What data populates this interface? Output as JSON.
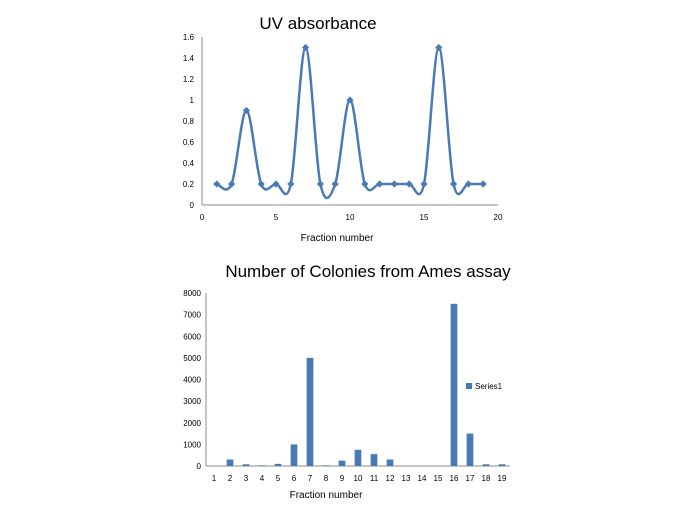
{
  "chart_data": [
    {
      "type": "line",
      "title": "UV absorbance",
      "xlabel": "Fraction number",
      "ylabel": "",
      "xlim": [
        0,
        20
      ],
      "ylim": [
        0,
        1.6
      ],
      "x_ticks": [
        "0",
        "5",
        "10",
        "15",
        "20"
      ],
      "y_ticks": [
        "0",
        "0.2",
        "0.4",
        "0.6",
        "0.8",
        "1",
        "1.2",
        "1.4",
        "1.6"
      ],
      "smooth": true,
      "marker": "diamond",
      "color": "#4a7ab5",
      "grid": false,
      "legend": "none",
      "series": [
        {
          "x": [
            1,
            2,
            3,
            4,
            5,
            6,
            7,
            8,
            9,
            10,
            11,
            12,
            13,
            14,
            15,
            16,
            17,
            18,
            19
          ],
          "values": [
            0.2,
            0.2,
            0.9,
            0.2,
            0.2,
            0.2,
            1.5,
            0.2,
            0.2,
            1.0,
            0.2,
            0.2,
            0.2,
            0.2,
            0.2,
            1.5,
            0.2,
            0.2,
            0.2
          ]
        }
      ]
    },
    {
      "type": "bar",
      "title": "Number of Colonies from Ames assay",
      "xlabel": "Fraction number",
      "ylabel": "",
      "ylim": [
        0,
        8000
      ],
      "y_ticks": [
        "0",
        "1000",
        "2000",
        "3000",
        "4000",
        "5000",
        "6000",
        "7000",
        "8000"
      ],
      "categories": [
        "1",
        "2",
        "3",
        "4",
        "5",
        "6",
        "7",
        "8",
        "9",
        "10",
        "11",
        "12",
        "13",
        "14",
        "15",
        "16",
        "17",
        "18",
        "19"
      ],
      "color": "#4a7ab5",
      "grid": false,
      "legend": "right",
      "series": [
        {
          "name": "Series1",
          "values": [
            0,
            300,
            80,
            30,
            100,
            1000,
            5000,
            30,
            250,
            750,
            550,
            300,
            0,
            0,
            0,
            7500,
            1500,
            80,
            80
          ]
        }
      ]
    }
  ]
}
